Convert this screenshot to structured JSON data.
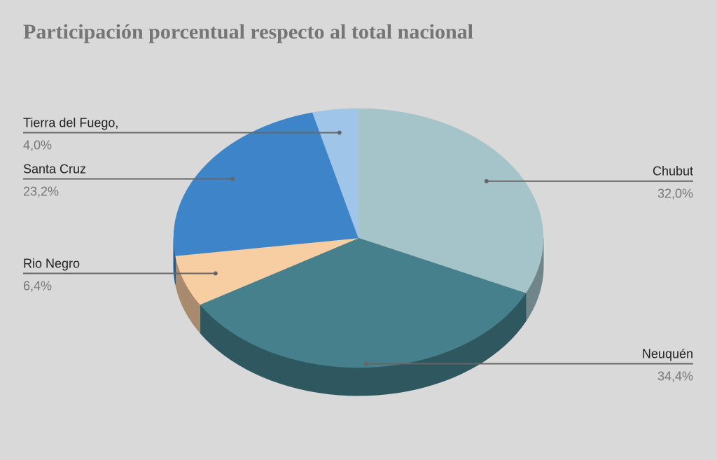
{
  "chart_data": {
    "type": "pie",
    "title": "Participación porcentual respecto al total nacional",
    "categories": [
      "Chubut",
      "Neuquén",
      "Rio Negro",
      "Santa Cruz",
      "Tierra del Fuego,"
    ],
    "values": [
      32.0,
      34.4,
      6.4,
      23.2,
      4.0
    ],
    "value_labels": [
      "32,0%",
      "34,4%",
      "6,4%",
      "23,2%",
      "4,0%"
    ],
    "colors": [
      "#a5c4c9",
      "#45808c",
      "#f7cda2",
      "#3d85c8",
      "#9fc5e8"
    ]
  }
}
